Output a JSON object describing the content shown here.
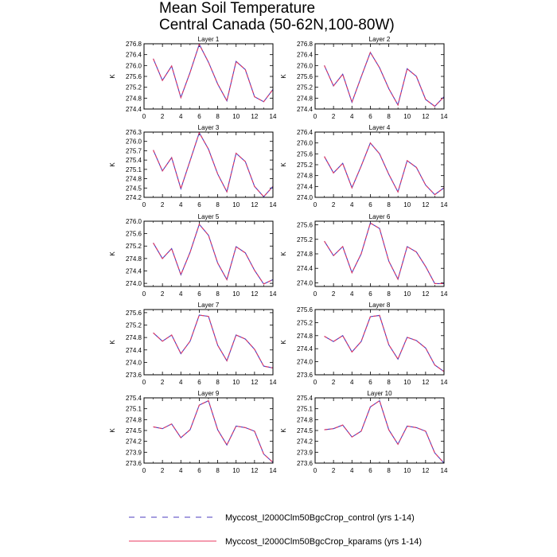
{
  "title": {
    "line1": "Mean Soil Temperature",
    "line2": "Central Canada (50-62N,100-80W)"
  },
  "legend": {
    "control": "Myccost_I2000Clm50BgcCrop_control (yrs 1-14)",
    "kparams": "Myccost_I2000Clm50BgcCrop_kparams (yrs 1-14)"
  },
  "colors": {
    "control": "#4b3cbf",
    "kparams": "#e8395f"
  },
  "chart_data": [
    {
      "type": "line",
      "title": "Layer 1",
      "ylabel": "K",
      "xlim": [
        0,
        14
      ],
      "ylim": [
        274.4,
        276.8
      ],
      "xticks": [
        "0",
        "2",
        "4",
        "6",
        "8",
        "10",
        "12",
        "14"
      ],
      "yticks": [
        "274.4",
        "274.8",
        "275.2",
        "275.6",
        "276.0",
        "276.4",
        "276.8"
      ],
      "x": [
        1,
        2,
        3,
        4,
        5,
        6,
        7,
        8,
        9,
        10,
        11,
        12,
        13,
        14
      ],
      "series": [
        {
          "name": "Myccost_I2000Clm50BgcCrop_control (yrs 1-14)",
          "values": [
            276.25,
            275.45,
            275.98,
            274.82,
            275.75,
            276.78,
            276.12,
            275.32,
            274.7,
            276.15,
            275.85,
            274.85,
            274.67,
            275.12
          ]
        },
        {
          "name": "Myccost_I2000Clm50BgcCrop_kparams (yrs 1-14)",
          "values": [
            276.25,
            275.45,
            275.98,
            274.82,
            275.75,
            276.78,
            276.12,
            275.32,
            274.7,
            276.15,
            275.85,
            274.85,
            274.67,
            275.12
          ]
        }
      ]
    },
    {
      "type": "line",
      "title": "Layer 2",
      "ylabel": "K",
      "xlim": [
        0,
        14
      ],
      "ylim": [
        274.4,
        276.8
      ],
      "xticks": [
        "0",
        "2",
        "4",
        "6",
        "8",
        "10",
        "12",
        "14"
      ],
      "yticks": [
        "274.4",
        "274.8",
        "275.2",
        "275.6",
        "276.0",
        "276.4",
        "276.8"
      ],
      "x": [
        1,
        2,
        3,
        4,
        5,
        6,
        7,
        8,
        9,
        10,
        11,
        12,
        13,
        14
      ],
      "series": [
        {
          "name": "Myccost_I2000Clm50BgcCrop_control (yrs 1-14)",
          "values": [
            276.0,
            275.25,
            275.68,
            274.65,
            275.58,
            276.48,
            275.92,
            275.15,
            274.55,
            275.88,
            275.6,
            274.75,
            274.5,
            274.85
          ]
        },
        {
          "name": "Myccost_I2000Clm50BgcCrop_kparams (yrs 1-14)",
          "values": [
            276.0,
            275.25,
            275.68,
            274.65,
            275.58,
            276.48,
            275.92,
            275.15,
            274.55,
            275.88,
            275.6,
            274.75,
            274.5,
            274.85
          ]
        }
      ]
    },
    {
      "type": "line",
      "title": "Layer 3",
      "ylabel": "K",
      "xlim": [
        0,
        14
      ],
      "ylim": [
        274.2,
        276.3
      ],
      "xticks": [
        "0",
        "2",
        "4",
        "6",
        "8",
        "10",
        "12",
        "14"
      ],
      "yticks": [
        "274.2",
        "274.5",
        "274.8",
        "275.1",
        "275.4",
        "275.7",
        "276.0",
        "276.3"
      ],
      "x": [
        1,
        2,
        3,
        4,
        5,
        6,
        7,
        8,
        9,
        10,
        11,
        12,
        13,
        14
      ],
      "series": [
        {
          "name": "Myccost_I2000Clm50BgcCrop_control (yrs 1-14)",
          "values": [
            275.72,
            275.05,
            275.48,
            274.48,
            275.38,
            276.28,
            275.75,
            274.95,
            274.38,
            275.62,
            275.35,
            274.55,
            274.22,
            274.55
          ]
        },
        {
          "name": "Myccost_I2000Clm50BgcCrop_kparams (yrs 1-14)",
          "values": [
            275.72,
            275.05,
            275.48,
            274.48,
            275.38,
            276.28,
            275.75,
            274.95,
            274.38,
            275.62,
            275.35,
            274.55,
            274.22,
            274.55
          ]
        }
      ]
    },
    {
      "type": "line",
      "title": "Layer 4",
      "ylabel": "K",
      "xlim": [
        0,
        14
      ],
      "ylim": [
        274.0,
        276.4
      ],
      "xticks": [
        "0",
        "2",
        "4",
        "6",
        "8",
        "10",
        "12",
        "14"
      ],
      "yticks": [
        "274.0",
        "274.4",
        "274.8",
        "275.2",
        "275.6",
        "276.0",
        "276.4"
      ],
      "x": [
        1,
        2,
        3,
        4,
        5,
        6,
        7,
        8,
        9,
        10,
        11,
        12,
        13,
        14
      ],
      "series": [
        {
          "name": "Myccost_I2000Clm50BgcCrop_control (yrs 1-14)",
          "values": [
            275.5,
            274.9,
            275.25,
            274.35,
            275.15,
            276.0,
            275.6,
            274.85,
            274.2,
            275.35,
            275.1,
            274.45,
            274.1,
            274.35
          ]
        },
        {
          "name": "Myccost_I2000Clm50BgcCrop_kparams (yrs 1-14)",
          "values": [
            275.5,
            274.9,
            275.25,
            274.35,
            275.15,
            276.0,
            275.6,
            274.85,
            274.2,
            275.35,
            275.1,
            274.45,
            274.1,
            274.35
          ]
        }
      ]
    },
    {
      "type": "line",
      "title": "Layer 5",
      "ylabel": "K",
      "xlim": [
        0,
        14
      ],
      "ylim": [
        273.9,
        276.0
      ],
      "xticks": [
        "0",
        "2",
        "4",
        "6",
        "8",
        "10",
        "12",
        "14"
      ],
      "yticks": [
        "274.0",
        "274.4",
        "274.8",
        "275.2",
        "275.6",
        "276.0"
      ],
      "x": [
        1,
        2,
        3,
        4,
        5,
        6,
        7,
        8,
        9,
        10,
        11,
        12,
        13,
        14
      ],
      "series": [
        {
          "name": "Myccost_I2000Clm50BgcCrop_control (yrs 1-14)",
          "values": [
            275.3,
            274.8,
            275.12,
            274.28,
            275.0,
            275.9,
            275.55,
            274.65,
            274.12,
            275.18,
            274.98,
            274.42,
            273.98,
            274.12
          ]
        },
        {
          "name": "Myccost_I2000Clm50BgcCrop_kparams (yrs 1-14)",
          "values": [
            275.3,
            274.8,
            275.12,
            274.28,
            275.0,
            275.9,
            275.55,
            274.65,
            274.12,
            275.18,
            274.98,
            274.42,
            273.98,
            274.12
          ]
        }
      ]
    },
    {
      "type": "line",
      "title": "Layer 6",
      "ylabel": "K",
      "xlim": [
        0,
        14
      ],
      "ylim": [
        273.9,
        275.7
      ],
      "xticks": [
        "0",
        "2",
        "4",
        "6",
        "8",
        "10",
        "12",
        "14"
      ],
      "yticks": [
        "274.0",
        "274.4",
        "274.8",
        "275.2",
        "275.6"
      ],
      "x": [
        1,
        2,
        3,
        4,
        5,
        6,
        7,
        8,
        9,
        10,
        11,
        12,
        13,
        14
      ],
      "series": [
        {
          "name": "Myccost_I2000Clm50BgcCrop_control (yrs 1-14)",
          "values": [
            275.15,
            274.75,
            275.0,
            274.28,
            274.8,
            275.65,
            275.5,
            274.6,
            274.1,
            275.0,
            274.85,
            274.45,
            273.98,
            273.98
          ]
        },
        {
          "name": "Myccost_I2000Clm50BgcCrop_kparams (yrs 1-14)",
          "values": [
            275.15,
            274.75,
            275.0,
            274.28,
            274.8,
            275.65,
            275.5,
            274.6,
            274.1,
            275.0,
            274.85,
            274.45,
            273.98,
            273.98
          ]
        }
      ]
    },
    {
      "type": "line",
      "title": "Layer 7",
      "ylabel": "K",
      "xlim": [
        0,
        14
      ],
      "ylim": [
        273.6,
        275.7
      ],
      "xticks": [
        "0",
        "2",
        "4",
        "6",
        "8",
        "10",
        "12",
        "14"
      ],
      "yticks": [
        "273.6",
        "274.0",
        "274.4",
        "274.8",
        "275.2",
        "275.6"
      ],
      "x": [
        1,
        2,
        3,
        4,
        5,
        6,
        7,
        8,
        9,
        10,
        11,
        12,
        13,
        14
      ],
      "series": [
        {
          "name": "Myccost_I2000Clm50BgcCrop_control (yrs 1-14)",
          "values": [
            274.95,
            274.68,
            274.88,
            274.28,
            274.68,
            275.52,
            275.48,
            274.55,
            274.05,
            274.88,
            274.75,
            274.42,
            273.88,
            273.82
          ]
        },
        {
          "name": "Myccost_I2000Clm50BgcCrop_kparams (yrs 1-14)",
          "values": [
            274.95,
            274.68,
            274.88,
            274.28,
            274.68,
            275.52,
            275.48,
            274.55,
            274.05,
            274.88,
            274.75,
            274.42,
            273.88,
            273.82
          ]
        }
      ]
    },
    {
      "type": "line",
      "title": "Layer 8",
      "ylabel": "K",
      "xlim": [
        0,
        14
      ],
      "ylim": [
        273.6,
        275.6
      ],
      "xticks": [
        "0",
        "2",
        "4",
        "6",
        "8",
        "10",
        "12",
        "14"
      ],
      "yticks": [
        "273.6",
        "274.0",
        "274.4",
        "274.8",
        "275.2",
        "275.6"
      ],
      "x": [
        1,
        2,
        3,
        4,
        5,
        6,
        7,
        8,
        9,
        10,
        11,
        12,
        13,
        14
      ],
      "series": [
        {
          "name": "Myccost_I2000Clm50BgcCrop_control (yrs 1-14)",
          "values": [
            274.78,
            274.62,
            274.8,
            274.3,
            274.62,
            275.38,
            275.42,
            274.52,
            274.08,
            274.75,
            274.65,
            274.42,
            273.9,
            273.7
          ]
        },
        {
          "name": "Myccost_I2000Clm50BgcCrop_kparams (yrs 1-14)",
          "values": [
            274.78,
            274.62,
            274.8,
            274.3,
            274.62,
            275.38,
            275.42,
            274.52,
            274.08,
            274.75,
            274.65,
            274.42,
            273.9,
            273.7
          ]
        }
      ]
    },
    {
      "type": "line",
      "title": "Layer 9",
      "ylabel": "K",
      "xlim": [
        0,
        14
      ],
      "ylim": [
        273.6,
        275.4
      ],
      "xticks": [
        "0",
        "2",
        "4",
        "6",
        "8",
        "10",
        "12",
        "14"
      ],
      "yticks": [
        "273.6",
        "273.9",
        "274.2",
        "274.5",
        "274.8",
        "275.1",
        "275.4"
      ],
      "x": [
        1,
        2,
        3,
        4,
        5,
        6,
        7,
        8,
        9,
        10,
        11,
        12,
        13,
        14
      ],
      "series": [
        {
          "name": "Myccost_I2000Clm50BgcCrop_control (yrs 1-14)",
          "values": [
            274.6,
            274.55,
            274.68,
            274.3,
            274.52,
            275.2,
            275.32,
            274.52,
            274.1,
            274.62,
            274.58,
            274.48,
            273.85,
            273.62
          ]
        },
        {
          "name": "Myccost_I2000Clm50BgcCrop_kparams (yrs 1-14)",
          "values": [
            274.6,
            274.55,
            274.68,
            274.3,
            274.52,
            275.2,
            275.32,
            274.52,
            274.1,
            274.62,
            274.58,
            274.48,
            273.85,
            273.62
          ]
        }
      ]
    },
    {
      "type": "line",
      "title": "Layer 10",
      "ylabel": "K",
      "xlim": [
        0,
        14
      ],
      "ylim": [
        273.6,
        275.4
      ],
      "xticks": [
        "0",
        "2",
        "4",
        "6",
        "8",
        "10",
        "12",
        "14"
      ],
      "yticks": [
        "273.6",
        "273.9",
        "274.2",
        "274.5",
        "274.8",
        "275.1",
        "275.4"
      ],
      "x": [
        1,
        2,
        3,
        4,
        5,
        6,
        7,
        8,
        9,
        10,
        11,
        12,
        13,
        14
      ],
      "series": [
        {
          "name": "Myccost_I2000Clm50BgcCrop_control (yrs 1-14)",
          "values": [
            274.52,
            274.55,
            274.65,
            274.32,
            274.48,
            275.15,
            275.32,
            274.52,
            274.12,
            274.62,
            274.58,
            274.48,
            273.88,
            273.6
          ]
        },
        {
          "name": "Myccost_I2000Clm50BgcCrop_kparams (yrs 1-14)",
          "values": [
            274.52,
            274.55,
            274.65,
            274.32,
            274.48,
            275.15,
            275.32,
            274.52,
            274.12,
            274.62,
            274.58,
            274.48,
            273.88,
            273.6
          ]
        }
      ]
    }
  ]
}
